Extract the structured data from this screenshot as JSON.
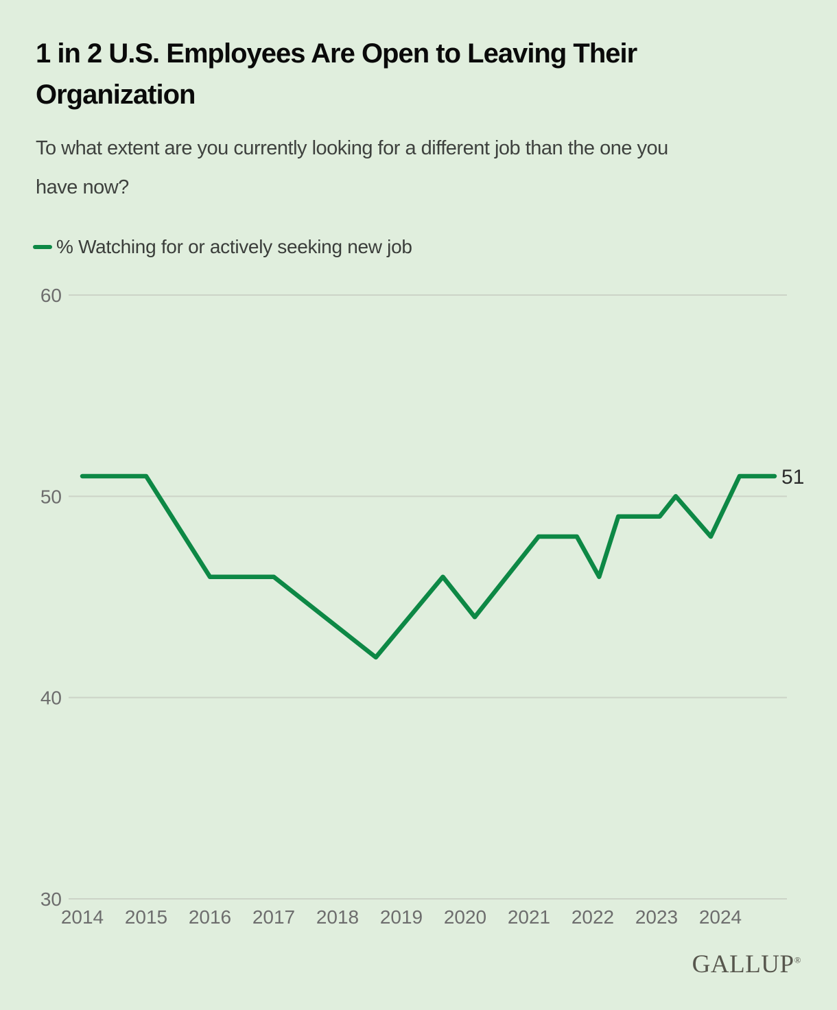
{
  "header": {
    "title_lines": [
      "1 in 2 U.S. Employees Are Open to Leaving Their",
      "Organization"
    ],
    "subtitle_lines": [
      "To what extent are you currently looking for a different job than the one you",
      "have now?"
    ]
  },
  "legend": {
    "series_label": "% Watching for or actively seeking new job"
  },
  "chart_data": {
    "type": "line",
    "title": "1 in 2 U.S. Employees Are Open to Leaving Their Organization",
    "subtitle": "To what extent are you currently looking for a different job than the one you have now?",
    "xlabel": "",
    "ylabel": "",
    "x_ticks": [
      2014,
      2015,
      2016,
      2017,
      2018,
      2019,
      2020,
      2021,
      2022,
      2023,
      2024
    ],
    "y_ticks": [
      30,
      40,
      50,
      60
    ],
    "ylim": [
      30,
      60
    ],
    "xlim": [
      2013.78,
      2025.05
    ],
    "grid": "horizontal",
    "legend_position": "top-left",
    "line_color": "#0d8845",
    "end_label": "51",
    "series": [
      {
        "name": "% Watching for or actively seeking new job",
        "points": [
          [
            2014.0,
            51
          ],
          [
            2015.0,
            51
          ],
          [
            2016.0,
            46
          ],
          [
            2017.0,
            46
          ],
          [
            2018.6,
            42
          ],
          [
            2019.65,
            46
          ],
          [
            2020.15,
            44
          ],
          [
            2021.15,
            48
          ],
          [
            2021.75,
            48
          ],
          [
            2022.1,
            46
          ],
          [
            2022.4,
            49
          ],
          [
            2023.05,
            49
          ],
          [
            2023.3,
            50
          ],
          [
            2023.85,
            48
          ],
          [
            2024.3,
            51
          ],
          [
            2024.85,
            51
          ]
        ]
      }
    ]
  },
  "footer": {
    "brand": "GALLUP",
    "registered_mark": "®"
  }
}
